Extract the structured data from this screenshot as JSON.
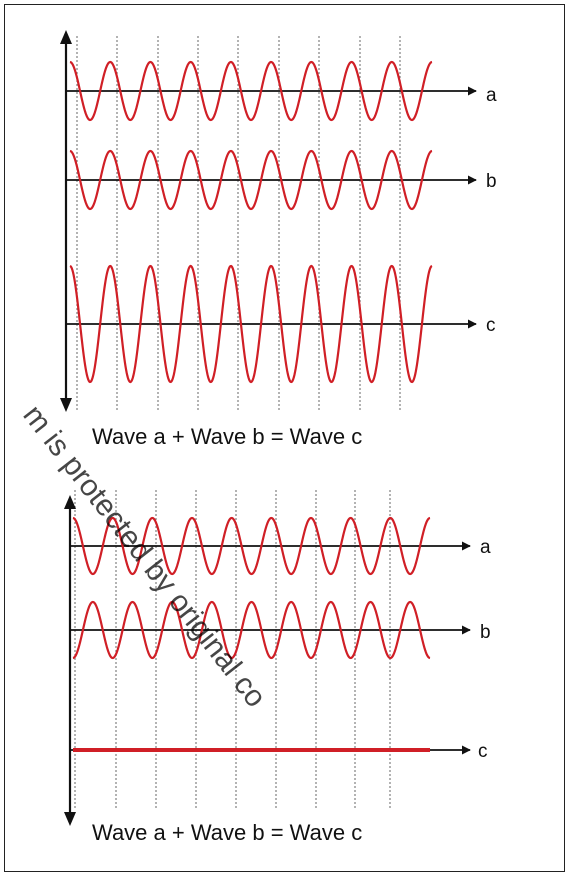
{
  "panels": [
    {
      "id": "constructive",
      "waves": [
        {
          "label": "a",
          "amplitude": 1,
          "phase": "in-phase"
        },
        {
          "label": "b",
          "amplitude": 1,
          "phase": "in-phase"
        },
        {
          "label": "c",
          "amplitude": 2,
          "phase": "sum"
        }
      ],
      "cycles": 9,
      "caption": "Wave a + Wave b = Wave c"
    },
    {
      "id": "destructive",
      "waves": [
        {
          "label": "a",
          "amplitude": 1,
          "phase": "in-phase"
        },
        {
          "label": "b",
          "amplitude": 1,
          "phase": "opposite"
        },
        {
          "label": "c",
          "amplitude": 0,
          "phase": "sum"
        }
      ],
      "cycles": 9,
      "caption": "Wave a + Wave b = Wave c"
    }
  ],
  "watermark": "m is protected by original co",
  "colors": {
    "wave": "#d01f26",
    "axis": "#111111",
    "grid": "#8a8a8a"
  }
}
